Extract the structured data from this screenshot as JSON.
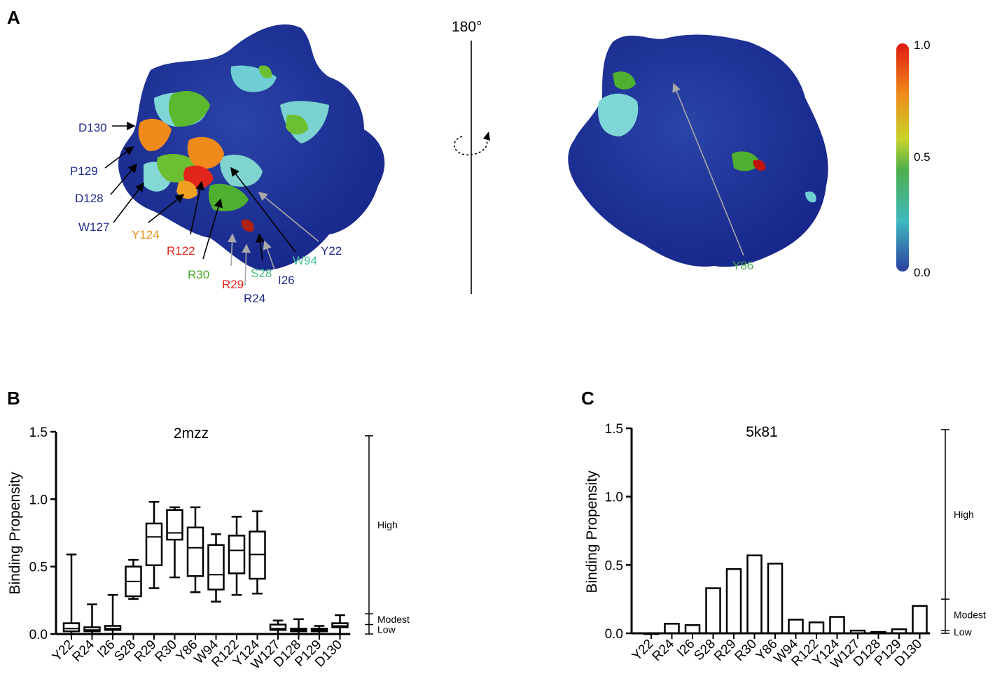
{
  "panel_letters": {
    "a": "A",
    "b": "B",
    "c": "C"
  },
  "rotation_label": "180°",
  "colorbar": {
    "ticks": [
      "1.0",
      "0.5",
      "0.0"
    ],
    "gradient": [
      "#2b3fa0",
      "#3fb8c0",
      "#4fb04a",
      "#c8d42a",
      "#f08a1a",
      "#e01a10"
    ]
  },
  "structure_left_labels": [
    {
      "text": "D130",
      "color": "#1f2b8c"
    },
    {
      "text": "P129",
      "color": "#1f2b8c"
    },
    {
      "text": "D128",
      "color": "#1f2b8c"
    },
    {
      "text": "W127",
      "color": "#1f2b8c"
    },
    {
      "text": "Y124",
      "color": "#e8901a"
    },
    {
      "text": "R122",
      "color": "#e3261b"
    },
    {
      "text": "R30",
      "color": "#4aa627"
    },
    {
      "text": "R29",
      "color": "#e3261b"
    },
    {
      "text": "S28",
      "color": "#4bbf7e"
    },
    {
      "text": "R24",
      "color": "#1f2b8c"
    },
    {
      "text": "I26",
      "color": "#1f2b8c"
    },
    {
      "text": "W94",
      "color": "#4bbf9a"
    },
    {
      "text": "Y22",
      "color": "#1f2b8c"
    }
  ],
  "structure_right_labels": [
    {
      "text": "Y86",
      "color": "#4aa850"
    }
  ],
  "chart_data": [
    {
      "type": "box",
      "title": "2mzz",
      "ylabel": "Binding Propensity",
      "ylim": [
        0,
        1.5
      ],
      "yticks": [
        "0.0",
        "0.5",
        "1.0",
        "1.5"
      ],
      "categories": [
        "Y22",
        "R24",
        "I26",
        "S28",
        "R29",
        "R30",
        "Y86",
        "W94",
        "R122",
        "Y124",
        "W127",
        "D128",
        "P129",
        "D130"
      ],
      "boxes": [
        {
          "min": 0.0,
          "q1": 0.02,
          "median": 0.04,
          "q3": 0.08,
          "max": 0.59
        },
        {
          "min": 0.0,
          "q1": 0.02,
          "median": 0.03,
          "q3": 0.05,
          "max": 0.22
        },
        {
          "min": 0.0,
          "q1": 0.03,
          "median": 0.04,
          "q3": 0.06,
          "max": 0.29
        },
        {
          "min": 0.26,
          "q1": 0.28,
          "median": 0.39,
          "q3": 0.5,
          "max": 0.55
        },
        {
          "min": 0.34,
          "q1": 0.51,
          "median": 0.72,
          "q3": 0.82,
          "max": 0.98
        },
        {
          "min": 0.42,
          "q1": 0.7,
          "median": 0.75,
          "q3": 0.92,
          "max": 0.94
        },
        {
          "min": 0.31,
          "q1": 0.43,
          "median": 0.64,
          "q3": 0.79,
          "max": 0.94
        },
        {
          "min": 0.24,
          "q1": 0.33,
          "median": 0.44,
          "q3": 0.66,
          "max": 0.74
        },
        {
          "min": 0.29,
          "q1": 0.45,
          "median": 0.62,
          "q3": 0.73,
          "max": 0.87
        },
        {
          "min": 0.3,
          "q1": 0.41,
          "median": 0.59,
          "q3": 0.76,
          "max": 0.91
        },
        {
          "min": 0.0,
          "q1": 0.03,
          "median": 0.04,
          "q3": 0.07,
          "max": 0.1
        },
        {
          "min": 0.0,
          "q1": 0.02,
          "median": 0.03,
          "q3": 0.04,
          "max": 0.11
        },
        {
          "min": 0.0,
          "q1": 0.02,
          "median": 0.03,
          "q3": 0.04,
          "max": 0.06
        },
        {
          "min": 0.0,
          "q1": 0.05,
          "median": 0.06,
          "q3": 0.08,
          "max": 0.14
        }
      ],
      "levels": {
        "high": "High",
        "modest": "Modest",
        "low": "Low"
      },
      "thresholds": {
        "top": 1.47,
        "modest": 0.15,
        "low": 0.07
      }
    },
    {
      "type": "bar",
      "title": "5k81",
      "ylabel": "Binding Propensity",
      "ylim": [
        0,
        1.5
      ],
      "yticks": [
        "0.0",
        "0.5",
        "1.0",
        "1.5"
      ],
      "categories": [
        "Y22",
        "R24",
        "I26",
        "S28",
        "R29",
        "R30",
        "Y86",
        "W94",
        "R122",
        "Y124",
        "W127",
        "D128",
        "P129",
        "D130"
      ],
      "values": [
        0.0,
        0.07,
        0.06,
        0.33,
        0.47,
        0.57,
        0.51,
        0.1,
        0.08,
        0.12,
        0.02,
        0.01,
        0.03,
        0.2
      ],
      "levels": {
        "high": "High",
        "modest": "Modest",
        "low": "Low"
      },
      "thresholds": {
        "top": 1.49,
        "modest": 0.25,
        "low": 0.02
      }
    }
  ]
}
